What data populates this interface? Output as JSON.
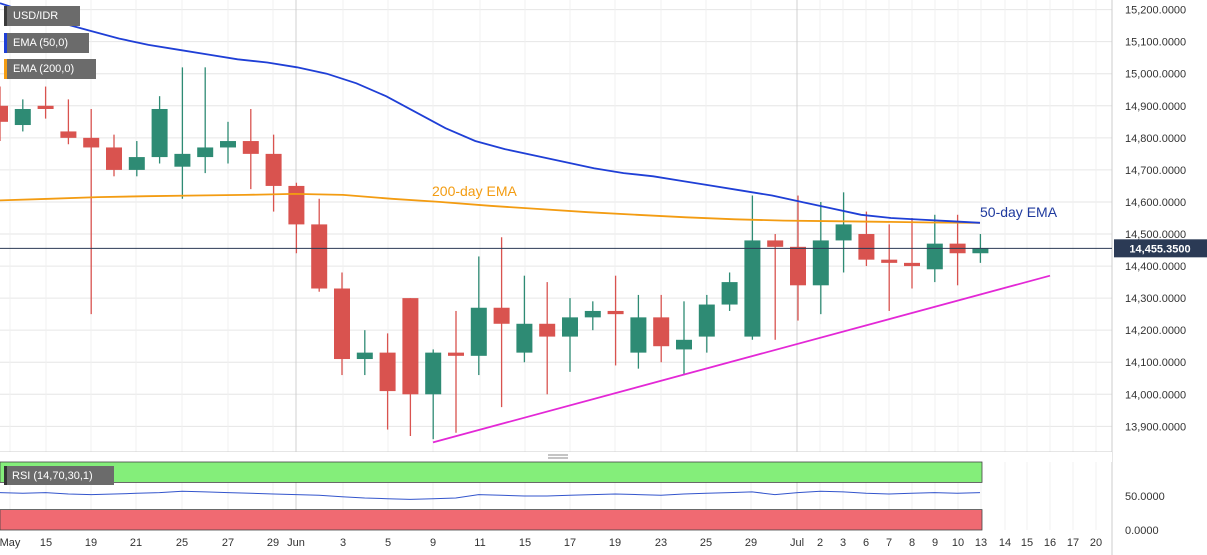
{
  "legend": {
    "symbol": "USD/IDR",
    "ema50": "EMA (50,0)",
    "ema200": "EMA (200,0)",
    "rsi": "RSI (14,70,30,1)"
  },
  "annotations": {
    "ema200": "200-day EMA",
    "ema50": "50-day EMA"
  },
  "last_price": "14,455.3500",
  "colors": {
    "up": "#2e8b74",
    "down": "#d9534f",
    "ema50": "#1f3fd6",
    "ema200": "#f39c12",
    "trend": "#e328d6",
    "rsi_over": "#84ee7a",
    "rsi_under": "#f06a72",
    "rsi_line": "#3355cc"
  },
  "chart_data": [
    {
      "type": "candlestick",
      "title": "USD/IDR",
      "ylim": [
        13820,
        15230
      ],
      "y_ticks": [
        "15,200.0000",
        "15,100.0000",
        "15,000.0000",
        "14,900.0000",
        "14,800.0000",
        "14,700.0000",
        "14,600.0000",
        "14,500.0000",
        "14,400.0000",
        "14,300.0000",
        "14,200.0000",
        "14,100.0000",
        "14,000.0000",
        "13,900.0000"
      ],
      "x_ticks": [
        "May",
        "15",
        "19",
        "21",
        "25",
        "27",
        "29",
        "Jun",
        "3",
        "5",
        "9",
        "11",
        "15",
        "17",
        "19",
        "23",
        "25",
        "29",
        "Jul",
        "2",
        "3",
        "6",
        "7",
        "8",
        "9",
        "10",
        "13",
        "14",
        "15",
        "16",
        "17",
        "20"
      ],
      "candles": [
        {
          "o": 14900,
          "h": 14960,
          "l": 14790,
          "c": 14850
        },
        {
          "o": 14840,
          "h": 14920,
          "l": 14820,
          "c": 14890
        },
        {
          "o": 14900,
          "h": 14960,
          "l": 14860,
          "c": 14890
        },
        {
          "o": 14820,
          "h": 14920,
          "l": 14780,
          "c": 14800
        },
        {
          "o": 14800,
          "h": 14890,
          "l": 14250,
          "c": 14770
        },
        {
          "o": 14770,
          "h": 14810,
          "l": 14680,
          "c": 14700
        },
        {
          "o": 14700,
          "h": 14790,
          "l": 14680,
          "c": 14740
        },
        {
          "o": 14740,
          "h": 14930,
          "l": 14720,
          "c": 14890
        },
        {
          "o": 14710,
          "h": 15020,
          "l": 14610,
          "c": 14750
        },
        {
          "o": 14740,
          "h": 15020,
          "l": 14690,
          "c": 14770
        },
        {
          "o": 14770,
          "h": 14850,
          "l": 14720,
          "c": 14790
        },
        {
          "o": 14790,
          "h": 14890,
          "l": 14640,
          "c": 14750
        },
        {
          "o": 14750,
          "h": 14810,
          "l": 14570,
          "c": 14650
        },
        {
          "o": 14650,
          "h": 14660,
          "l": 14440,
          "c": 14530
        },
        {
          "o": 14530,
          "h": 14610,
          "l": 14320,
          "c": 14330
        },
        {
          "o": 14330,
          "h": 14380,
          "l": 14060,
          "c": 14110
        },
        {
          "o": 14110,
          "h": 14200,
          "l": 14060,
          "c": 14130
        },
        {
          "o": 14130,
          "h": 14190,
          "l": 13890,
          "c": 14010
        },
        {
          "o": 14300,
          "h": 14300,
          "l": 13870,
          "c": 14000
        },
        {
          "o": 14000,
          "h": 14140,
          "l": 13860,
          "c": 14130
        },
        {
          "o": 14130,
          "h": 14260,
          "l": 13880,
          "c": 14120
        },
        {
          "o": 14120,
          "h": 14430,
          "l": 14060,
          "c": 14270
        },
        {
          "o": 14270,
          "h": 14490,
          "l": 13960,
          "c": 14220
        },
        {
          "o": 14130,
          "h": 14370,
          "l": 14100,
          "c": 14220
        },
        {
          "o": 14220,
          "h": 14350,
          "l": 14000,
          "c": 14180
        },
        {
          "o": 14180,
          "h": 14300,
          "l": 14070,
          "c": 14240
        },
        {
          "o": 14240,
          "h": 14290,
          "l": 14200,
          "c": 14260
        },
        {
          "o": 14260,
          "h": 14370,
          "l": 14090,
          "c": 14250
        },
        {
          "o": 14130,
          "h": 14310,
          "l": 14080,
          "c": 14240
        },
        {
          "o": 14240,
          "h": 14310,
          "l": 14100,
          "c": 14150
        },
        {
          "o": 14140,
          "h": 14290,
          "l": 14060,
          "c": 14170
        },
        {
          "o": 14180,
          "h": 14310,
          "l": 14130,
          "c": 14280
        },
        {
          "o": 14280,
          "h": 14380,
          "l": 14260,
          "c": 14350
        },
        {
          "o": 14180,
          "h": 14620,
          "l": 14170,
          "c": 14480
        },
        {
          "o": 14480,
          "h": 14500,
          "l": 14170,
          "c": 14460
        },
        {
          "o": 14460,
          "h": 14620,
          "l": 14230,
          "c": 14340
        },
        {
          "o": 14340,
          "h": 14600,
          "l": 14250,
          "c": 14480
        },
        {
          "o": 14480,
          "h": 14630,
          "l": 14380,
          "c": 14530
        },
        {
          "o": 14500,
          "h": 14570,
          "l": 14400,
          "c": 14420
        },
        {
          "o": 14420,
          "h": 14530,
          "l": 14260,
          "c": 14410
        },
        {
          "o": 14410,
          "h": 14550,
          "l": 14330,
          "c": 14400
        },
        {
          "o": 14390,
          "h": 14560,
          "l": 14350,
          "c": 14470
        },
        {
          "o": 14470,
          "h": 14560,
          "l": 14340,
          "c": 14440
        },
        {
          "o": 14440,
          "h": 14500,
          "l": 14410,
          "c": 14455
        }
      ],
      "ema50": [
        15220,
        15190,
        15160,
        15135,
        15110,
        15090,
        15075,
        15060,
        15045,
        15035,
        15020,
        15000,
        14970,
        14930,
        14880,
        14830,
        14790,
        14765,
        14745,
        14725,
        14705,
        14690,
        14680,
        14665,
        14650,
        14635,
        14620,
        14600,
        14580,
        14560,
        14550,
        14545,
        14540,
        14535
      ],
      "ema200": [
        14605,
        14610,
        14615,
        14618,
        14620,
        14622,
        14625,
        14622,
        14610,
        14600,
        14588,
        14578,
        14568,
        14560,
        14552,
        14546,
        14542,
        14540,
        14538,
        14536,
        14535
      ],
      "trendline": [
        [
          13850
        ],
        [
          14370
        ]
      ],
      "rsi": {
        "ylim": [
          0,
          100
        ],
        "y_ticks": [
          "50.0000",
          "0.0000"
        ],
        "overbought": 70,
        "oversold": 30,
        "values": [
          55,
          54,
          55,
          53,
          52,
          53,
          54,
          55,
          57,
          56,
          55,
          54,
          53,
          52,
          51,
          49,
          47,
          46,
          45,
          46,
          47,
          52,
          51,
          50,
          50,
          51,
          52,
          53,
          52,
          51,
          53,
          54,
          55,
          56,
          52,
          55,
          57,
          56,
          54,
          53,
          54,
          55,
          54,
          55
        ]
      }
    }
  ]
}
